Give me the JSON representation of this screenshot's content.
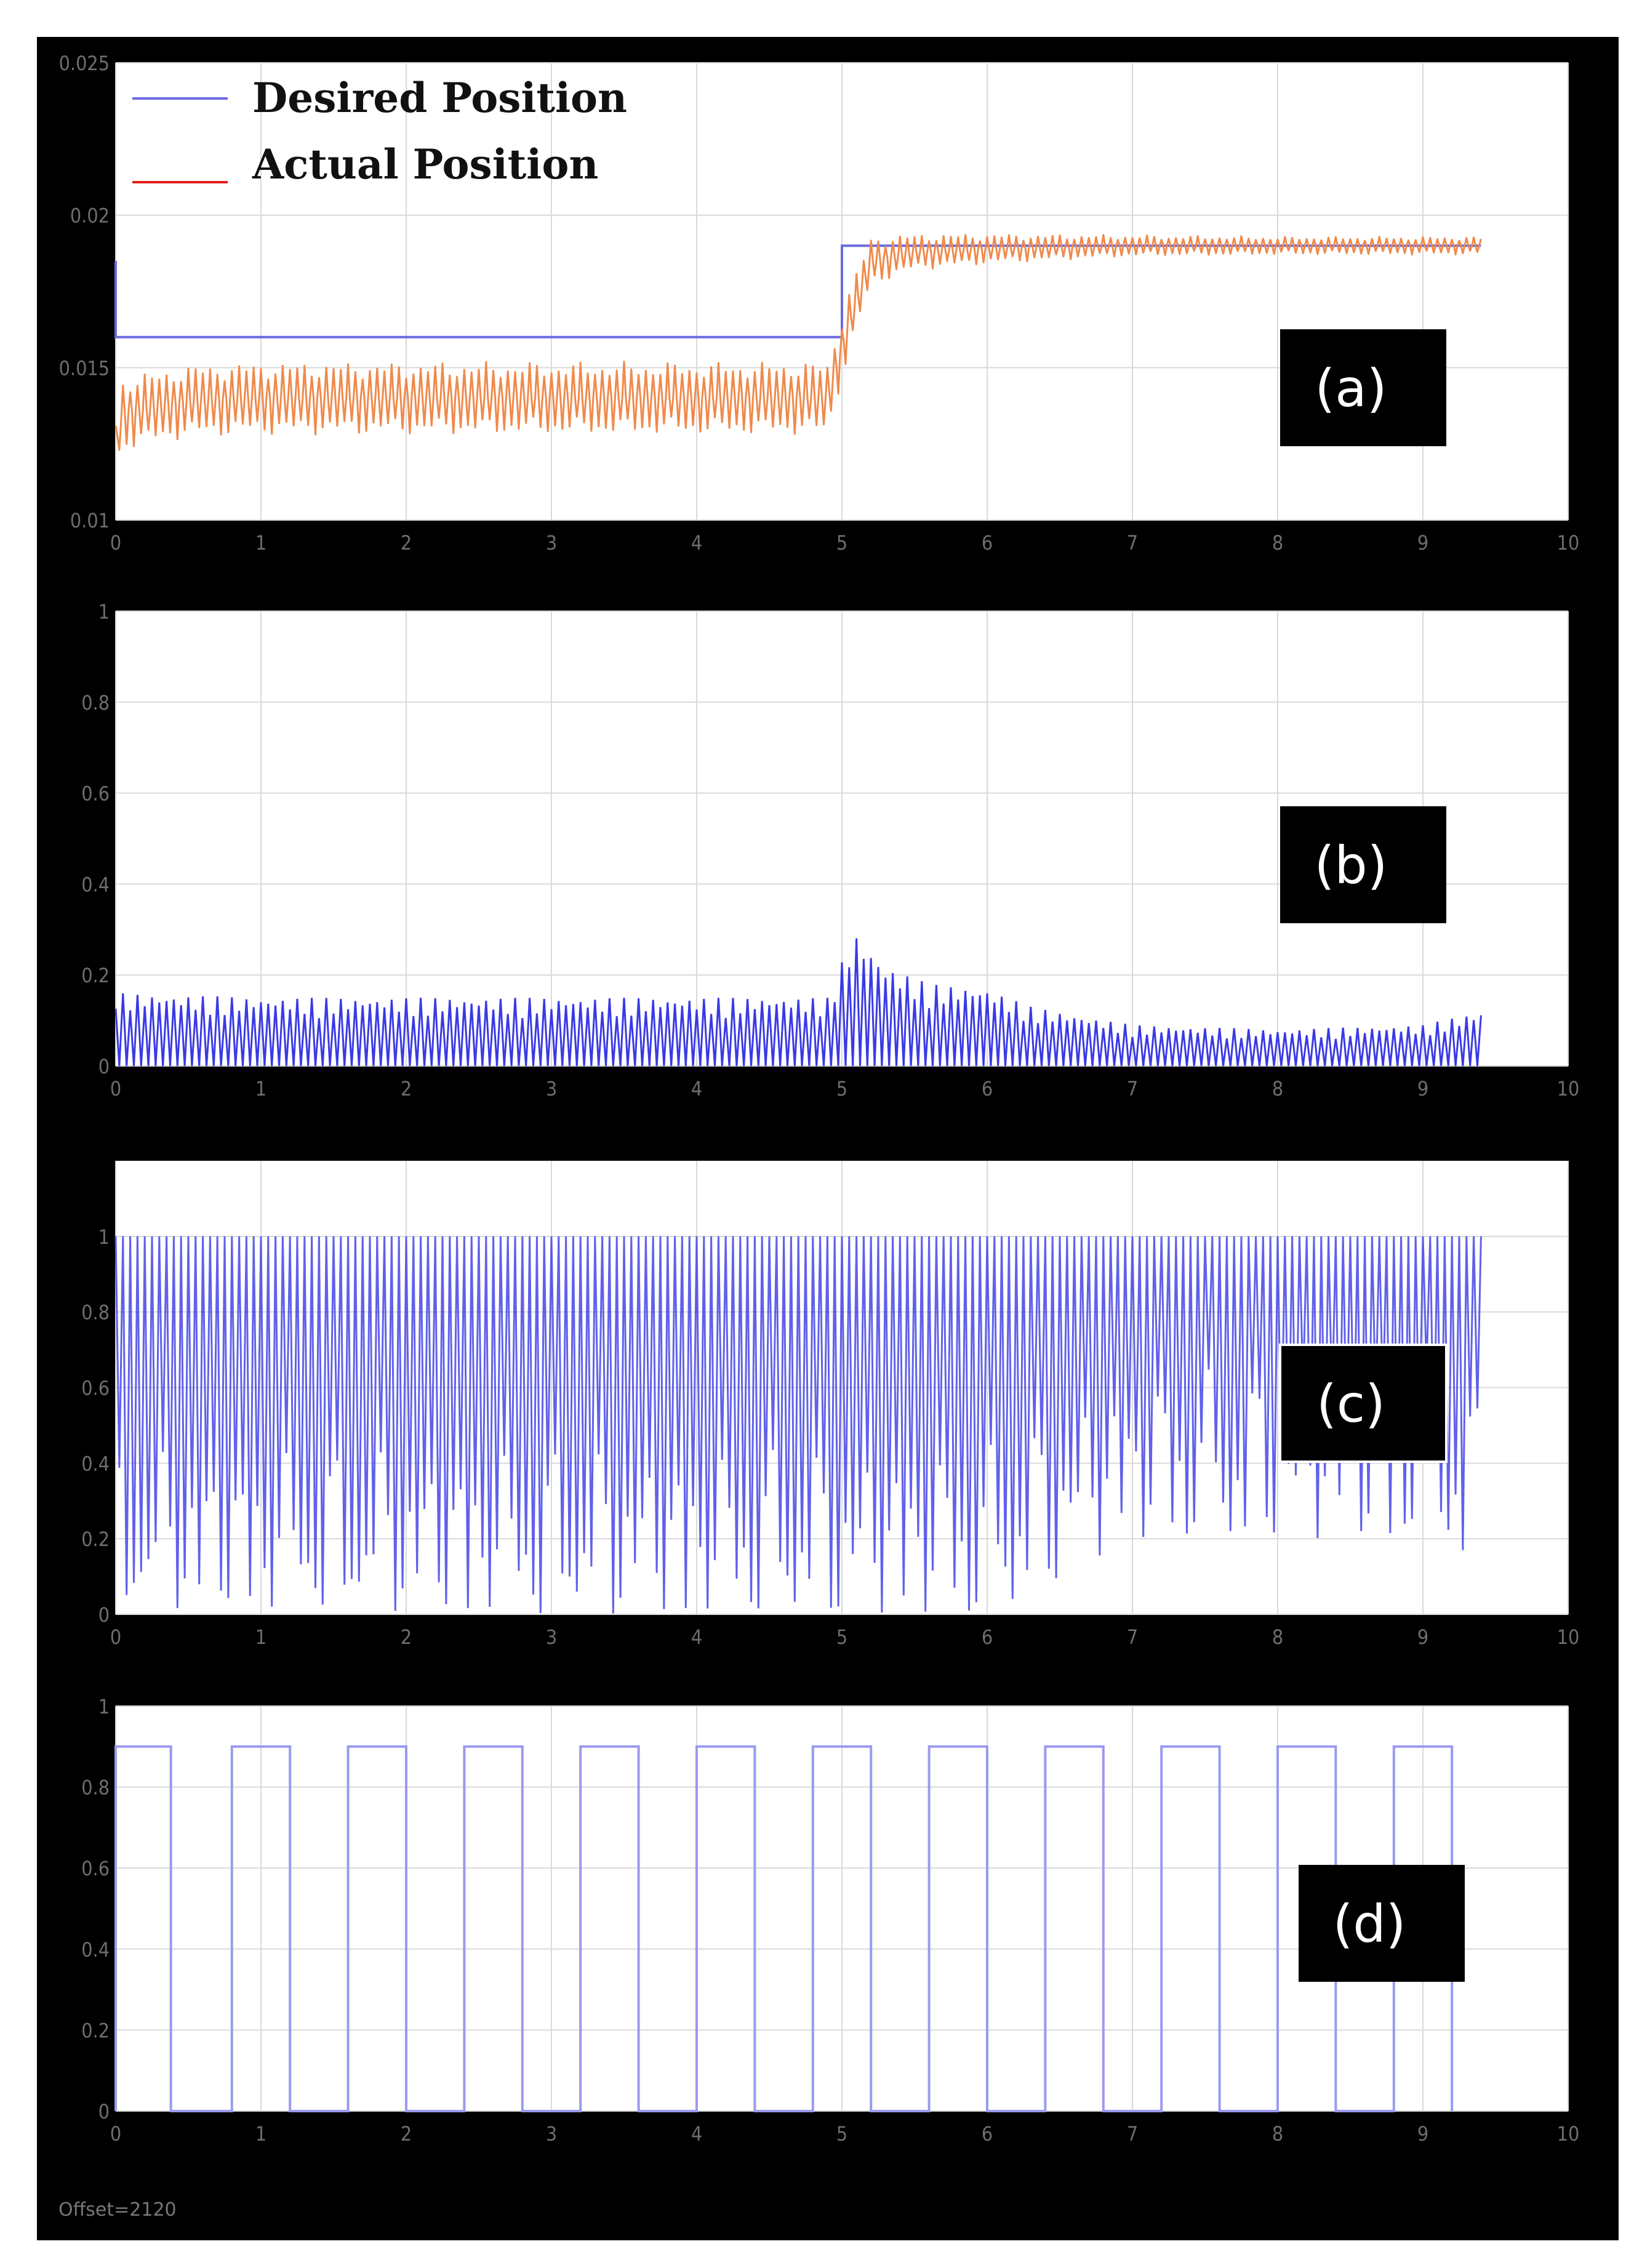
{
  "offset_label": "Offset=2120",
  "colors": {
    "frame": "#000000",
    "plot_bg": "#ffffff",
    "grid": "#d9d9d9",
    "desired": "#6b6be0",
    "actual": "#f08a4b",
    "signal": "#3a3ae6",
    "pulse": "#9a9af0",
    "tag_bg": "#000000",
    "tag_text": "#ffffff"
  },
  "chart_data": [
    {
      "type": "line",
      "panel_tag": "(a)",
      "xlim": [
        0,
        10
      ],
      "ylim": [
        0.01,
        0.025
      ],
      "x_ticks": [
        0,
        1,
        2,
        3,
        4,
        5,
        6,
        7,
        8,
        9,
        10
      ],
      "x_tick_labels": [
        "0",
        "1",
        "2",
        "3",
        "4",
        "5",
        "6",
        "7",
        "8",
        "9",
        "10"
      ],
      "y_ticks": [
        0.01,
        0.015,
        0.02,
        0.025
      ],
      "y_tick_labels": [
        "0.01",
        "0.015",
        "0.02",
        "0.025"
      ],
      "grid": true,
      "legend_position": "top-left",
      "legend": [
        "Desired Position",
        "Actual Position"
      ],
      "series": [
        {
          "name": "Desired Position",
          "color": "#6b6be0",
          "x": [
            0,
            0,
            5,
            5,
            9.4
          ],
          "y": [
            0.0185,
            0.016,
            0.016,
            0.019,
            0.019
          ]
        },
        {
          "name": "Actual Position",
          "color": "#f08a4b",
          "oscillation_period": 0.05,
          "x": [
            0,
            0.05,
            0.5,
            1,
            2,
            3,
            4,
            4.9,
            5.05,
            5.2,
            5.5,
            6,
            7,
            8,
            9,
            9.4
          ],
          "center": [
            0.0125,
            0.0135,
            0.0139,
            0.014,
            0.014,
            0.014,
            0.014,
            0.014,
            0.0165,
            0.0185,
            0.0188,
            0.0189,
            0.019,
            0.019,
            0.019,
            0.019
          ],
          "amplitude": [
            0.0008,
            0.0012,
            0.0012,
            0.0012,
            0.0012,
            0.0012,
            0.0012,
            0.0012,
            0.0011,
            0.0008,
            0.0006,
            0.0005,
            0.00035,
            0.0003,
            0.0003,
            0.0003
          ]
        }
      ]
    },
    {
      "type": "line",
      "panel_tag": "(b)",
      "xlim": [
        0,
        10
      ],
      "ylim": [
        0,
        1
      ],
      "x_ticks": [
        0,
        1,
        2,
        3,
        4,
        5,
        6,
        7,
        8,
        9,
        10
      ],
      "x_tick_labels": [
        "0",
        "1",
        "2",
        "3",
        "4",
        "5",
        "6",
        "7",
        "8",
        "9",
        "10"
      ],
      "y_ticks": [
        0,
        0.2,
        0.4,
        0.6,
        0.8,
        1
      ],
      "y_tick_labels": [
        "0",
        "0.2",
        "0.4",
        "0.6",
        "0.8",
        "1"
      ],
      "grid": true,
      "series": [
        {
          "color": "#3a3ae6",
          "oscillation_period": 0.05,
          "x": [
            0,
            0.05,
            1,
            2,
            3,
            4,
            4.9,
            5.05,
            5.1,
            5.3,
            5.6,
            6,
            6.3,
            7,
            8,
            9,
            9.4
          ],
          "peak": [
            0.18,
            0.16,
            0.15,
            0.15,
            0.15,
            0.15,
            0.15,
            0.27,
            0.29,
            0.22,
            0.18,
            0.17,
            0.13,
            0.09,
            0.08,
            0.09,
            0.12
          ]
        }
      ]
    },
    {
      "type": "line",
      "panel_tag": "(c)",
      "xlim": [
        0,
        10
      ],
      "ylim": [
        0,
        1.2
      ],
      "x_ticks": [
        0,
        1,
        2,
        3,
        4,
        5,
        6,
        7,
        8,
        9,
        10
      ],
      "x_tick_labels": [
        "0",
        "1",
        "2",
        "3",
        "4",
        "5",
        "6",
        "7",
        "8",
        "9",
        "10"
      ],
      "y_ticks": [
        0,
        0.2,
        0.4,
        0.6,
        0.8,
        1
      ],
      "y_tick_labels": [
        "0",
        "0.2",
        "0.4",
        "0.6",
        "0.8",
        "1"
      ],
      "grid": true,
      "series": [
        {
          "color": "#3a3ae6",
          "oscillation_period": 0.05,
          "x": [
            0,
            1,
            2,
            3,
            4,
            5,
            6,
            6.5,
            7,
            8,
            9,
            9.4
          ],
          "high": [
            1,
            1,
            1,
            1,
            1,
            1,
            1,
            1,
            1,
            1,
            1,
            1
          ],
          "low": [
            0,
            0,
            0,
            0,
            0,
            0,
            0,
            0.1,
            0.2,
            0.2,
            0.2,
            0.15
          ]
        }
      ]
    },
    {
      "type": "line",
      "panel_tag": "(d)",
      "xlim": [
        0,
        10
      ],
      "ylim": [
        0,
        1
      ],
      "x_ticks": [
        0,
        1,
        2,
        3,
        4,
        5,
        6,
        7,
        8,
        9,
        10
      ],
      "x_tick_labels": [
        "0",
        "1",
        "2",
        "3",
        "4",
        "5",
        "6",
        "7",
        "8",
        "9",
        "10"
      ],
      "y_ticks": [
        0,
        0.2,
        0.4,
        0.6,
        0.8,
        1
      ],
      "y_tick_labels": [
        "0",
        "0.2",
        "0.4",
        "0.6",
        "0.8",
        "1"
      ],
      "grid": true,
      "series": [
        {
          "color": "#9a9af0",
          "pulse_level": 0.9,
          "pulses": [
            [
              0,
              0.38
            ],
            [
              0.8,
              1.2
            ],
            [
              1.6,
              2.0
            ],
            [
              2.4,
              2.8
            ],
            [
              3.2,
              3.6
            ],
            [
              4.0,
              4.4
            ],
            [
              4.8,
              5.2
            ],
            [
              5.6,
              6.0
            ],
            [
              6.4,
              6.8
            ],
            [
              7.2,
              7.6
            ],
            [
              8.0,
              8.4
            ],
            [
              8.8,
              9.2
            ]
          ]
        }
      ]
    }
  ]
}
